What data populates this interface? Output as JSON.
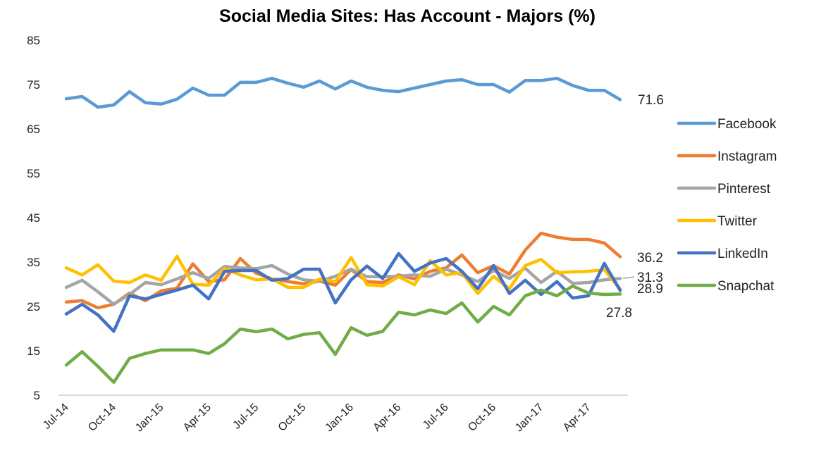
{
  "chart_data": {
    "type": "line",
    "title": "Social Media Sites: Has Account - Majors (%)",
    "xlabel": "",
    "ylabel": "",
    "ylim": [
      5,
      85
    ],
    "yticks": [
      5,
      15,
      25,
      35,
      45,
      55,
      65,
      75,
      85
    ],
    "grid": false,
    "legend_position": "right",
    "x": [
      "Jul-14",
      "Aug-14",
      "Sep-14",
      "Oct-14",
      "Nov-14",
      "Dec-14",
      "Jan-15",
      "Feb-15",
      "Mar-15",
      "Apr-15",
      "May-15",
      "Jun-15",
      "Jul-15",
      "Aug-15",
      "Sep-15",
      "Oct-15",
      "Nov-15",
      "Dec-15",
      "Jan-16",
      "Feb-16",
      "Mar-16",
      "Apr-16",
      "May-16",
      "Jun-16",
      "Jul-16",
      "Aug-16",
      "Sep-16",
      "Oct-16",
      "Nov-16",
      "Dec-16",
      "Jan-17",
      "Feb-17",
      "Mar-17",
      "Apr-17",
      "May-17",
      "Jun-17"
    ],
    "xtick_labels": [
      "Jul-14",
      "Oct-14",
      "Jan-15",
      "Apr-15",
      "Jul-15",
      "Oct-15",
      "Jan-16",
      "Apr-16",
      "Jul-16",
      "Oct-16",
      "Jan-17",
      "Apr-17"
    ],
    "series": [
      {
        "name": "Facebook",
        "color": "#5B9BD5",
        "end_label": "71.6",
        "values": [
          71.8,
          72.3,
          69.9,
          70.4,
          73.4,
          70.9,
          70.6,
          71.7,
          74.2,
          72.6,
          72.6,
          75.5,
          75.5,
          76.4,
          75.3,
          74.4,
          75.8,
          74.0,
          75.8,
          74.4,
          73.7,
          73.4,
          74.2,
          75.0,
          75.8,
          76.1,
          75.0,
          75.0,
          73.3,
          75.9,
          75.9,
          76.4,
          74.8,
          73.7,
          73.7,
          71.6
        ]
      },
      {
        "name": "Instagram",
        "color": "#ED7D31",
        "end_label": "36.2",
        "values": [
          26.0,
          26.3,
          24.7,
          25.5,
          28.0,
          26.3,
          28.5,
          29.1,
          34.6,
          30.6,
          31.0,
          35.8,
          32.5,
          31.2,
          30.6,
          30.1,
          30.7,
          29.8,
          33.3,
          30.6,
          30.4,
          32.1,
          31.2,
          32.9,
          33.7,
          36.6,
          32.6,
          34.2,
          32.3,
          37.7,
          41.5,
          40.6,
          40.1,
          40.1,
          39.3,
          36.2
        ]
      },
      {
        "name": "Pinterest",
        "color": "#A5A5A5",
        "end_label": "31.3",
        "values": [
          29.3,
          30.9,
          28.3,
          25.5,
          27.7,
          30.4,
          29.9,
          31.2,
          32.6,
          31.3,
          34.0,
          33.7,
          33.5,
          34.2,
          32.3,
          31.0,
          30.7,
          31.8,
          33.4,
          31.7,
          31.7,
          31.8,
          32.1,
          31.8,
          33.4,
          32.1,
          30.6,
          33.1,
          31.3,
          33.6,
          30.4,
          32.9,
          30.2,
          30.4,
          31.0,
          31.3
        ]
      },
      {
        "name": "Twitter",
        "color": "#FFC000",
        "end_label": "28.9",
        "values": [
          33.7,
          32.1,
          34.4,
          30.7,
          30.4,
          32.1,
          30.9,
          36.3,
          30.0,
          29.8,
          33.5,
          32.1,
          31.0,
          31.2,
          29.3,
          29.3,
          31.2,
          30.6,
          36.0,
          29.9,
          29.6,
          31.7,
          29.9,
          35.3,
          32.1,
          32.6,
          27.9,
          31.8,
          29.0,
          34.2,
          35.6,
          32.6,
          32.8,
          32.9,
          33.3,
          28.9
        ]
      },
      {
        "name": "LinkedIn",
        "color": "#4472C4",
        "end_label": "",
        "values": [
          23.3,
          25.5,
          23.1,
          19.4,
          27.4,
          26.7,
          27.7,
          28.7,
          29.8,
          26.7,
          32.9,
          33.1,
          33.1,
          30.9,
          31.3,
          33.4,
          33.4,
          25.8,
          31.0,
          34.1,
          31.3,
          36.9,
          32.9,
          34.8,
          35.8,
          32.9,
          29.0,
          34.2,
          27.9,
          30.9,
          27.7,
          30.6,
          26.9,
          27.4,
          34.7,
          28.6
        ]
      },
      {
        "name": "Snapchat",
        "color": "#70AD47",
        "end_label": "27.8",
        "values": [
          11.8,
          14.8,
          11.5,
          7.9,
          13.3,
          14.4,
          15.2,
          15.2,
          15.2,
          14.4,
          16.6,
          19.9,
          19.3,
          19.9,
          17.7,
          18.7,
          19.1,
          14.2,
          20.2,
          18.5,
          19.4,
          23.7,
          23.1,
          24.2,
          23.4,
          25.8,
          21.5,
          25.0,
          23.1,
          27.4,
          28.7,
          27.4,
          29.6,
          28.0,
          27.7,
          27.8
        ]
      }
    ]
  }
}
